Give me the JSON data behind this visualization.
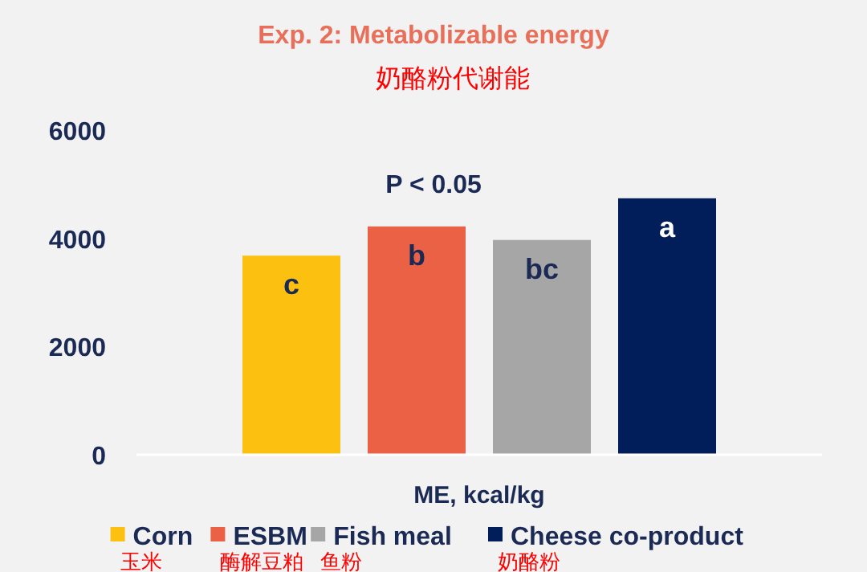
{
  "chart_data": {
    "type": "bar",
    "title": "Exp. 2: Metabolizable energy",
    "subtitle": "奶酪粉代谢能",
    "xlabel": "ME, kcal/kg",
    "categories": [
      null
    ],
    "series": [
      {
        "name": "Corn",
        "color": "#fcc010",
        "values": [
          3680
        ],
        "value_labels": [
          "c"
        ]
      },
      {
        "name": "ESBM",
        "color": "#eb6146",
        "values": [
          4220
        ],
        "value_labels": [
          "b"
        ]
      },
      {
        "name": "Fish meal",
        "color": "#a6a6a6",
        "values": [
          3970
        ],
        "value_labels": [
          "bc"
        ]
      },
      {
        "name": "Cheese co-product",
        "color": "#021e5a",
        "values": [
          4740
        ],
        "value_labels": [
          "a"
        ]
      }
    ],
    "annotations": [
      "P < 0.05",
      "玉米",
      "酶解豆粕",
      "鱼粉",
      "奶酪粉"
    ],
    "ylim": [
      0,
      6000
    ],
    "yticks": [
      0,
      2000,
      4000,
      6000
    ],
    "grid": false,
    "legend": "bottom"
  }
}
